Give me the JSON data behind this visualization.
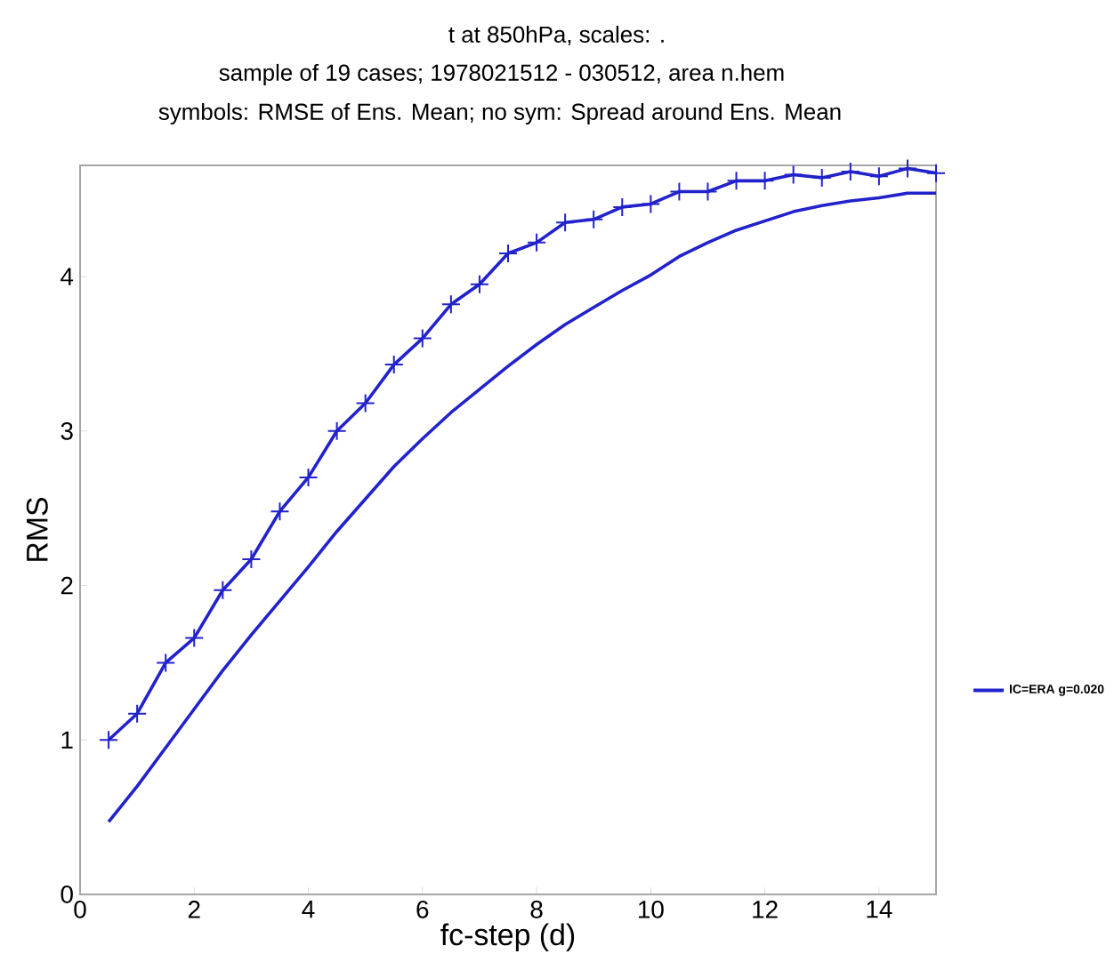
{
  "chart_data": {
    "type": "line",
    "title": "t at 850hPa,   scales: .",
    "subtitle": "sample of 19 cases; 1978021512 - 030512, area n.hem",
    "annotations": [
      "symbols: RMSE of Ens. Mean; no sym: Spread around  Ens. Mean"
    ],
    "xlabel": "fc-step (d)",
    "ylabel": "RMS",
    "x": [
      0.5,
      1,
      1.5,
      2,
      2.5,
      3,
      3.5,
      4,
      4.5,
      5,
      5.5,
      6,
      6.5,
      7,
      7.5,
      8,
      8.5,
      9,
      9.5,
      10,
      10.5,
      11,
      11.5,
      12,
      12.5,
      13,
      13.5,
      14,
      14.5,
      15
    ],
    "series": [
      {
        "color": "#2222cc",
        "marker": "cross",
        "values": [
          1.0,
          1.17,
          1.5,
          1.66,
          1.97,
          2.17,
          2.48,
          2.7,
          3.0,
          3.18,
          3.43,
          3.6,
          3.82,
          3.95,
          4.15,
          4.22,
          4.35,
          4.37,
          4.45,
          4.47,
          4.55,
          4.55,
          4.62,
          4.62,
          4.66,
          4.64,
          4.68,
          4.65,
          4.7,
          4.67
        ]
      },
      {
        "name": "IC=ERA g=0.020",
        "color": "#2222cc",
        "marker": "none",
        "values": [
          0.47,
          0.7,
          0.95,
          1.2,
          1.45,
          1.68,
          1.9,
          2.12,
          2.35,
          2.56,
          2.77,
          2.95,
          3.12,
          3.27,
          3.42,
          3.56,
          3.69,
          3.8,
          3.91,
          4.01,
          4.13,
          4.22,
          4.3,
          4.36,
          4.42,
          4.46,
          4.49,
          4.51,
          4.54,
          4.54
        ]
      }
    ],
    "xlim": [
      0,
      15
    ],
    "ylim": [
      0,
      4.72
    ],
    "xticks": [
      0,
      2,
      4,
      6,
      8,
      10,
      12,
      14
    ],
    "yticks": [
      0,
      1,
      2,
      3,
      4
    ],
    "legend": "right",
    "grid": false
  }
}
